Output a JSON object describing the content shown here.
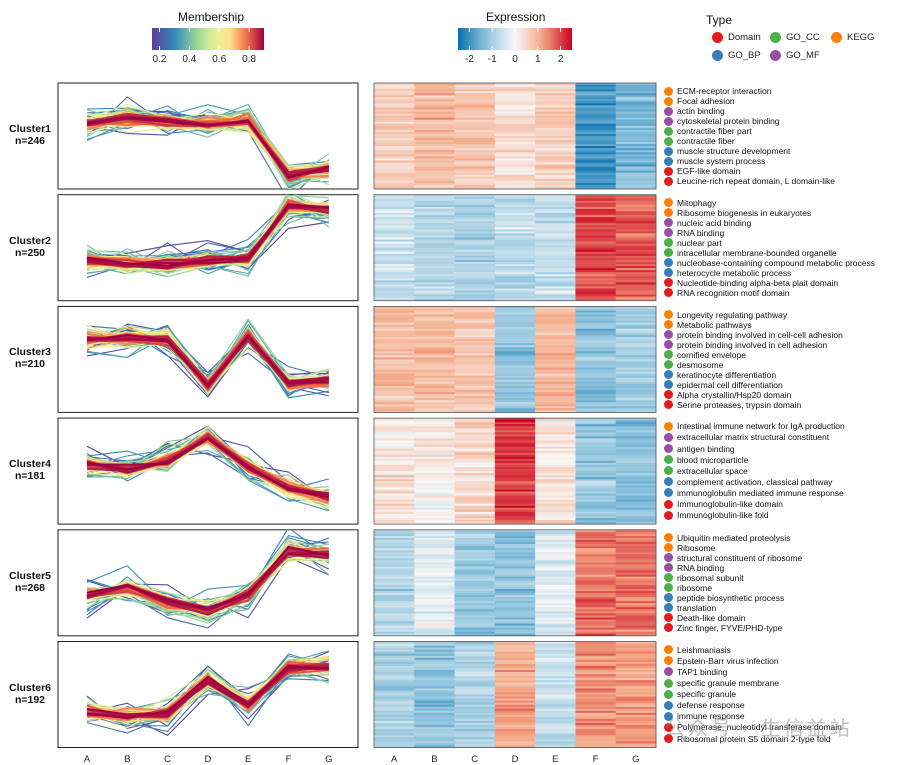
{
  "legend": {
    "membership_title": "Membership",
    "membership_ticks": [
      "0.2",
      "0.4",
      "0.6",
      "0.8"
    ],
    "expression_title": "Expression",
    "expression_ticks": [
      "-2",
      "-1",
      "0",
      "1",
      "2"
    ],
    "type_title": "Type",
    "types": [
      {
        "label": "Domain",
        "color": "#e41a1c"
      },
      {
        "label": "GO_CC",
        "color": "#4daf4a"
      },
      {
        "label": "KEGG",
        "color": "#ff7f00"
      },
      {
        "label": "GO_BP",
        "color": "#377eb8"
      },
      {
        "label": "GO_MF",
        "color": "#984ea3"
      }
    ]
  },
  "x_axis_labels": [
    "A",
    "B",
    "C",
    "D",
    "E",
    "F",
    "G"
  ],
  "chart_data": {
    "type": "line",
    "x": [
      "A",
      "B",
      "C",
      "D",
      "E",
      "F",
      "G"
    ],
    "membership_range": [
      0.15,
      0.9
    ],
    "expression_range": [
      -2.5,
      2.5
    ],
    "clusters": [
      {
        "name": "Cluster1",
        "n": "n=246",
        "centroid": [
          0.6,
          0.85,
          0.65,
          0.6,
          0.7,
          -1.9,
          -1.5
        ],
        "heatmap_means": [
          0.6,
          0.9,
          0.7,
          0.3,
          0.6,
          -2.0,
          -1.4
        ],
        "terms": [
          {
            "label": "ECM-receptor interaction",
            "type": "KEGG"
          },
          {
            "label": "Focal adhesion",
            "type": "KEGG"
          },
          {
            "label": "actin binding",
            "type": "GO_MF"
          },
          {
            "label": "cytoskeletal protein binding",
            "type": "GO_MF"
          },
          {
            "label": "contractile fiber part",
            "type": "GO_CC"
          },
          {
            "label": "contractile fiber",
            "type": "GO_CC"
          },
          {
            "label": "muscle structure development",
            "type": "GO_BP"
          },
          {
            "label": "muscle system process",
            "type": "GO_BP"
          },
          {
            "label": "EGF-like domain",
            "type": "Domain"
          },
          {
            "label": "Leucine-rich repeat domain, L domain-like",
            "type": "Domain"
          }
        ]
      },
      {
        "name": "Cluster2",
        "n": "n=250",
        "centroid": [
          -0.6,
          -0.75,
          -0.8,
          -0.6,
          -0.5,
          2.0,
          1.8
        ],
        "heatmap_means": [
          -0.6,
          -0.8,
          -0.9,
          -0.7,
          -0.6,
          2.0,
          1.8
        ],
        "terms": [
          {
            "label": "Mitophagy",
            "type": "KEGG"
          },
          {
            "label": "Ribosome biogenesis in eukaryotes",
            "type": "KEGG"
          },
          {
            "label": "nucleic acid binding",
            "type": "GO_MF"
          },
          {
            "label": "RNA binding",
            "type": "GO_MF"
          },
          {
            "label": "nuclear part",
            "type": "GO_CC"
          },
          {
            "label": "intracellular membrane-bounded organelle",
            "type": "GO_CC"
          },
          {
            "label": "nucleobase-containing compound metabolic process",
            "type": "GO_BP"
          },
          {
            "label": "heterocycle metabolic process",
            "type": "GO_BP"
          },
          {
            "label": "Nucleotide-binding alpha-beta plait domain",
            "type": "Domain"
          },
          {
            "label": "RNA recognition motif domain",
            "type": "Domain"
          }
        ]
      },
      {
        "name": "Cluster3",
        "n": "n=210",
        "centroid": [
          0.95,
          1.0,
          0.9,
          -1.2,
          1.1,
          -1.1,
          -1.0
        ],
        "heatmap_means": [
          0.9,
          0.9,
          0.8,
          -1.2,
          1.0,
          -1.3,
          -1.0
        ],
        "terms": [
          {
            "label": "Longevity regulating pathway",
            "type": "KEGG"
          },
          {
            "label": "Metabolic pathways",
            "type": "KEGG"
          },
          {
            "label": "protein binding involved in cell-cell adhesion",
            "type": "GO_MF"
          },
          {
            "label": "protein binding involved in cell adhesion",
            "type": "GO_MF"
          },
          {
            "label": "cornified envelope",
            "type": "GO_CC"
          },
          {
            "label": "desmosome",
            "type": "GO_CC"
          },
          {
            "label": "keratinocyte differentiation",
            "type": "GO_BP"
          },
          {
            "label": "epidermal cell differentiation",
            "type": "GO_BP"
          },
          {
            "label": "Alpha crystallin/Hsp20 domain",
            "type": "Domain"
          },
          {
            "label": "Serine proteases, trypsin domain",
            "type": "Domain"
          }
        ]
      },
      {
        "name": "Cluster4",
        "n": "n=181",
        "centroid": [
          0.3,
          0.1,
          0.5,
          1.6,
          0.2,
          -0.8,
          -1.2
        ],
        "heatmap_means": [
          0.3,
          0.1,
          0.5,
          2.0,
          0.3,
          -1.2,
          -1.3
        ],
        "terms": [
          {
            "label": "Intestinal immune network for IgA production",
            "type": "KEGG"
          },
          {
            "label": "extracellular matrix structural constituent",
            "type": "GO_MF"
          },
          {
            "label": "antigen binding",
            "type": "GO_MF"
          },
          {
            "label": "blood microparticle",
            "type": "GO_CC"
          },
          {
            "label": "extracellular space",
            "type": "GO_CC"
          },
          {
            "label": "complement activation, classical pathway",
            "type": "GO_BP"
          },
          {
            "label": "immunoglobulin mediated immune response",
            "type": "GO_BP"
          },
          {
            "label": "Immunoglobulin-like domain",
            "type": "Domain"
          },
          {
            "label": "Immunoglobulin-like fold",
            "type": "Domain"
          }
        ]
      },
      {
        "name": "Cluster5",
        "n": "n=268",
        "centroid": [
          -0.6,
          -0.2,
          -0.9,
          -1.3,
          -0.6,
          1.5,
          1.3
        ],
        "heatmap_means": [
          -0.8,
          -0.2,
          -1.1,
          -1.2,
          -0.3,
          1.6,
          1.7
        ],
        "terms": [
          {
            "label": "Ubiquitin mediated proteolysis",
            "type": "KEGG"
          },
          {
            "label": "Ribosome",
            "type": "KEGG"
          },
          {
            "label": "structural constituent of ribosome",
            "type": "GO_MF"
          },
          {
            "label": "RNA binding",
            "type": "GO_MF"
          },
          {
            "label": "ribosomal subunit",
            "type": "GO_CC"
          },
          {
            "label": "ribosome",
            "type": "GO_CC"
          },
          {
            "label": "peptide biosynthetic process",
            "type": "GO_BP"
          },
          {
            "label": "translation",
            "type": "GO_BP"
          },
          {
            "label": "Death-like domain",
            "type": "Domain"
          },
          {
            "label": "Zinc finger, FYVE/PHD-type",
            "type": "Domain"
          }
        ]
      },
      {
        "name": "Cluster6",
        "n": "n=192",
        "centroid": [
          -0.8,
          -1.0,
          -0.9,
          0.7,
          -0.5,
          1.3,
          1.3
        ],
        "heatmap_means": [
          -1.0,
          -1.2,
          -0.9,
          1.2,
          -0.7,
          1.4,
          1.3
        ],
        "terms": [
          {
            "label": "Leishmaniasis",
            "type": "KEGG"
          },
          {
            "label": "Epstein-Barr virus infection",
            "type": "KEGG"
          },
          {
            "label": "TAP1 binding",
            "type": "GO_MF"
          },
          {
            "label": "specific granule membrane",
            "type": "GO_CC"
          },
          {
            "label": "specific granule",
            "type": "GO_CC"
          },
          {
            "label": "defense response",
            "type": "GO_BP"
          },
          {
            "label": "immune response",
            "type": "GO_BP"
          },
          {
            "label": "Polymerase, nucleotidyl transferase domain",
            "type": "Domain"
          },
          {
            "label": "Ribosomal protein S5 domain 2-type fold",
            "type": "Domain"
          }
        ]
      }
    ]
  },
  "watermark": "公众号 · 生信益站"
}
